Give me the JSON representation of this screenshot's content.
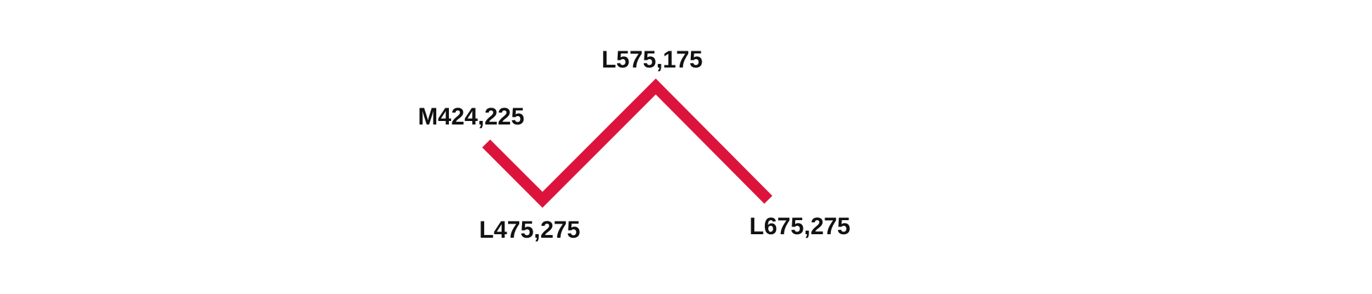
{
  "diagram": {
    "stroke_color": "#dc143c",
    "label_color": "#111111",
    "path_commands": [
      {
        "label": "M424,225"
      },
      {
        "label": "L475,275"
      },
      {
        "label": "L575,175"
      },
      {
        "label": "L675,275"
      }
    ]
  }
}
